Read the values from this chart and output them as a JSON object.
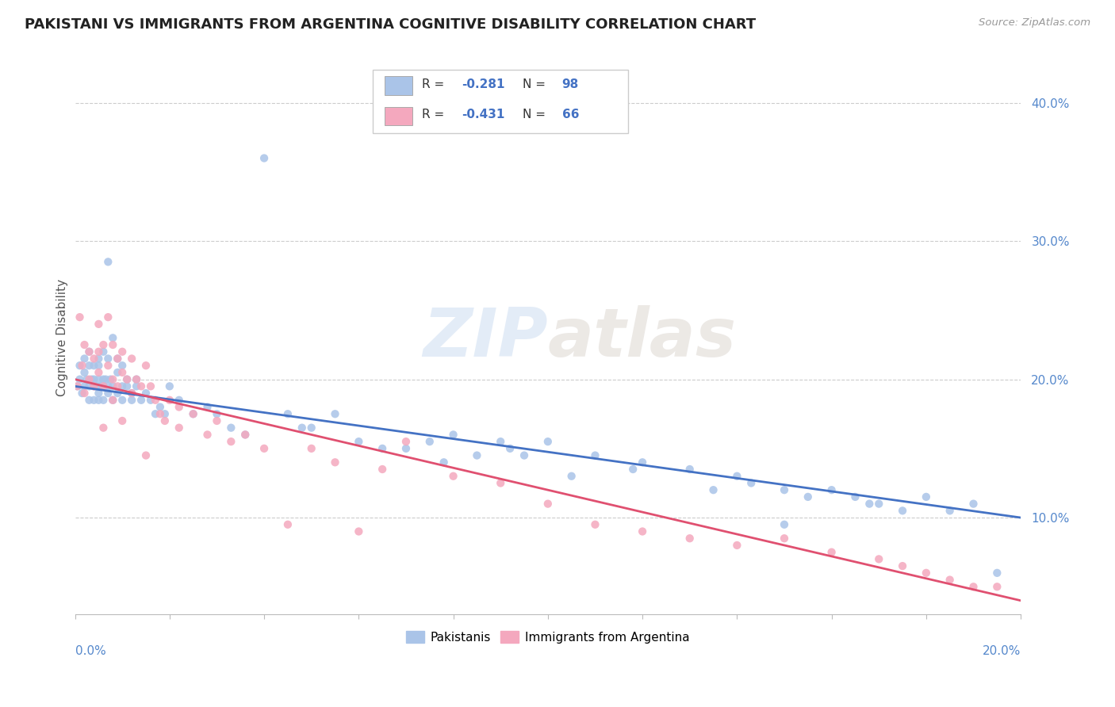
{
  "title": "PAKISTANI VS IMMIGRANTS FROM ARGENTINA COGNITIVE DISABILITY CORRELATION CHART",
  "source": "Source: ZipAtlas.com",
  "ylabel": "Cognitive Disability",
  "legend_labels": [
    "Pakistanis",
    "Immigrants from Argentina"
  ],
  "r_values": [
    -0.281,
    -0.431
  ],
  "n_values": [
    98,
    66
  ],
  "scatter_color_blue": "#aac4e8",
  "scatter_color_pink": "#f4a8be",
  "line_color_blue": "#4472c4",
  "line_color_pink": "#e05070",
  "background_color": "#ffffff",
  "grid_color": "#cccccc",
  "xmin": 0.0,
  "xmax": 0.2,
  "ymin": 0.03,
  "ymax": 0.43,
  "yticks": [
    0.1,
    0.2,
    0.3,
    0.4
  ],
  "ytick_labels": [
    "10.0%",
    "20.0%",
    "30.0%",
    "40.0%"
  ],
  "blue_scatter_x": [
    0.0005,
    0.001,
    0.001,
    0.0015,
    0.002,
    0.002,
    0.002,
    0.0025,
    0.003,
    0.003,
    0.003,
    0.003,
    0.0035,
    0.004,
    0.004,
    0.004,
    0.004,
    0.0045,
    0.005,
    0.005,
    0.005,
    0.005,
    0.005,
    0.0055,
    0.006,
    0.006,
    0.006,
    0.006,
    0.0065,
    0.007,
    0.007,
    0.007,
    0.007,
    0.0075,
    0.008,
    0.008,
    0.008,
    0.009,
    0.009,
    0.009,
    0.01,
    0.01,
    0.01,
    0.011,
    0.011,
    0.012,
    0.012,
    0.013,
    0.013,
    0.014,
    0.015,
    0.016,
    0.017,
    0.018,
    0.019,
    0.02,
    0.022,
    0.025,
    0.028,
    0.03,
    0.033,
    0.036,
    0.04,
    0.045,
    0.05,
    0.055,
    0.06,
    0.07,
    0.075,
    0.08,
    0.085,
    0.09,
    0.095,
    0.1,
    0.11,
    0.12,
    0.13,
    0.14,
    0.15,
    0.155,
    0.16,
    0.165,
    0.17,
    0.175,
    0.18,
    0.185,
    0.19,
    0.195,
    0.118,
    0.15,
    0.092,
    0.105,
    0.135,
    0.048,
    0.065,
    0.078,
    0.143,
    0.168
  ],
  "blue_scatter_y": [
    0.195,
    0.2,
    0.21,
    0.19,
    0.205,
    0.195,
    0.215,
    0.2,
    0.195,
    0.21,
    0.185,
    0.22,
    0.2,
    0.195,
    0.185,
    0.21,
    0.2,
    0.195,
    0.215,
    0.2,
    0.19,
    0.185,
    0.21,
    0.195,
    0.22,
    0.2,
    0.195,
    0.185,
    0.2,
    0.215,
    0.195,
    0.285,
    0.19,
    0.2,
    0.23,
    0.195,
    0.185,
    0.205,
    0.19,
    0.215,
    0.195,
    0.21,
    0.185,
    0.2,
    0.195,
    0.19,
    0.185,
    0.2,
    0.195,
    0.185,
    0.19,
    0.185,
    0.175,
    0.18,
    0.175,
    0.195,
    0.185,
    0.175,
    0.18,
    0.175,
    0.165,
    0.16,
    0.36,
    0.175,
    0.165,
    0.175,
    0.155,
    0.15,
    0.155,
    0.16,
    0.145,
    0.155,
    0.145,
    0.155,
    0.145,
    0.14,
    0.135,
    0.13,
    0.12,
    0.115,
    0.12,
    0.115,
    0.11,
    0.105,
    0.115,
    0.105,
    0.11,
    0.06,
    0.135,
    0.095,
    0.15,
    0.13,
    0.12,
    0.165,
    0.15,
    0.14,
    0.125,
    0.11
  ],
  "pink_scatter_x": [
    0.0005,
    0.001,
    0.0015,
    0.002,
    0.002,
    0.003,
    0.003,
    0.004,
    0.004,
    0.005,
    0.005,
    0.005,
    0.006,
    0.006,
    0.007,
    0.007,
    0.008,
    0.008,
    0.009,
    0.009,
    0.01,
    0.01,
    0.011,
    0.012,
    0.012,
    0.013,
    0.014,
    0.015,
    0.016,
    0.017,
    0.018,
    0.019,
    0.02,
    0.022,
    0.025,
    0.028,
    0.03,
    0.033,
    0.036,
    0.04,
    0.045,
    0.05,
    0.055,
    0.06,
    0.065,
    0.07,
    0.08,
    0.09,
    0.1,
    0.11,
    0.12,
    0.13,
    0.14,
    0.15,
    0.16,
    0.17,
    0.175,
    0.18,
    0.185,
    0.19,
    0.195,
    0.006,
    0.008,
    0.01,
    0.015,
    0.022
  ],
  "pink_scatter_y": [
    0.195,
    0.245,
    0.21,
    0.225,
    0.19,
    0.22,
    0.2,
    0.215,
    0.195,
    0.24,
    0.205,
    0.22,
    0.225,
    0.195,
    0.245,
    0.21,
    0.225,
    0.2,
    0.215,
    0.195,
    0.22,
    0.205,
    0.2,
    0.215,
    0.19,
    0.2,
    0.195,
    0.21,
    0.195,
    0.185,
    0.175,
    0.17,
    0.185,
    0.165,
    0.175,
    0.16,
    0.17,
    0.155,
    0.16,
    0.15,
    0.095,
    0.15,
    0.14,
    0.09,
    0.135,
    0.155,
    0.13,
    0.125,
    0.11,
    0.095,
    0.09,
    0.085,
    0.08,
    0.085,
    0.075,
    0.07,
    0.065,
    0.06,
    0.055,
    0.05,
    0.05,
    0.165,
    0.185,
    0.17,
    0.145,
    0.18
  ]
}
